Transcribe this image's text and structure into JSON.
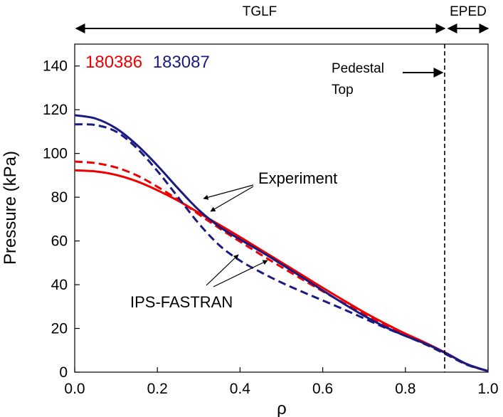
{
  "chart_data": {
    "type": "line",
    "xlabel": "ρ",
    "ylabel": "Pressure (kPa)",
    "xlim": [
      0,
      1
    ],
    "ylim": [
      0,
      150
    ],
    "x_ticks": [
      "0.0",
      "0.2",
      "0.4",
      "0.6",
      "0.8",
      "1.0"
    ],
    "y_ticks": [
      "0",
      "20",
      "40",
      "60",
      "80",
      "100",
      "120",
      "140"
    ],
    "grid": false,
    "legend_labels": [
      {
        "text": "180386",
        "color": "#ee0000"
      },
      {
        "text": "183087",
        "color": "#1a1a80"
      }
    ],
    "series": [
      {
        "shot": "180386",
        "kind": "Experiment",
        "style": "solid",
        "color": "#ee0000",
        "x": [
          0,
          0.05,
          0.1,
          0.15,
          0.2,
          0.25,
          0.3,
          0.35,
          0.4,
          0.45,
          0.5,
          0.55,
          0.6,
          0.65,
          0.7,
          0.75,
          0.8,
          0.85,
          0.9,
          0.95,
          1.0
        ],
        "y": [
          92.3,
          91.8,
          90.2,
          87.3,
          83.2,
          78.4,
          72.9,
          67.4,
          61.8,
          56.0,
          50.2,
          44.4,
          38.6,
          32.9,
          27.4,
          22.3,
          17.6,
          13.3,
          8.6,
          3.5,
          0.5
        ]
      },
      {
        "shot": "180386",
        "kind": "IPS-FASTRAN",
        "style": "dashed",
        "color": "#ee0000",
        "x": [
          0,
          0.05,
          0.1,
          0.15,
          0.2,
          0.25,
          0.3,
          0.35,
          0.4,
          0.45,
          0.5,
          0.55,
          0.6,
          0.65,
          0.7,
          0.75,
          0.8,
          0.85,
          0.9,
          0.95,
          1.0
        ],
        "y": [
          96.3,
          95.6,
          93.6,
          90.0,
          84.8,
          78.8,
          72.2,
          65.8,
          59.7,
          53.8,
          48.1,
          42.5,
          37.0,
          31.7,
          26.6,
          21.8,
          17.2,
          13.0,
          8.4,
          3.5,
          0.5
        ]
      },
      {
        "shot": "183087",
        "kind": "Experiment",
        "style": "solid",
        "color": "#1a1a80",
        "x": [
          0,
          0.05,
          0.1,
          0.15,
          0.2,
          0.25,
          0.3,
          0.35,
          0.4,
          0.45,
          0.5,
          0.55,
          0.6,
          0.65,
          0.7,
          0.75,
          0.8,
          0.85,
          0.9,
          0.95,
          1.0
        ],
        "y": [
          117.5,
          116.0,
          111.5,
          104.0,
          94.5,
          84.0,
          74.2,
          66.5,
          60.7,
          55.2,
          49.4,
          43.4,
          37.4,
          31.4,
          25.8,
          20.8,
          16.6,
          12.9,
          8.5,
          3.6,
          0.5
        ]
      },
      {
        "shot": "183087",
        "kind": "IPS-FASTRAN",
        "style": "dashed",
        "color": "#1a1a80",
        "x": [
          0,
          0.05,
          0.1,
          0.15,
          0.2,
          0.25,
          0.3,
          0.35,
          0.4,
          0.45,
          0.5,
          0.55,
          0.6,
          0.65,
          0.7,
          0.75,
          0.8,
          0.85,
          0.9,
          0.95,
          1.0
        ],
        "y": [
          113.3,
          113.0,
          110.0,
          102.5,
          92.0,
          80.0,
          68.0,
          58.0,
          51.0,
          45.7,
          41.0,
          36.8,
          32.8,
          28.8,
          24.6,
          20.4,
          16.6,
          12.6,
          8.0,
          3.3,
          0.5
        ]
      }
    ],
    "annotations": {
      "tglf": "TGLF",
      "eped": "EPED",
      "pedestal_line_x": 0.895,
      "pedestal_label_line1": "Pedestal",
      "pedestal_label_line2": "Top",
      "experiment": "Experiment",
      "ips_fastran": "IPS-FASTRAN"
    }
  }
}
